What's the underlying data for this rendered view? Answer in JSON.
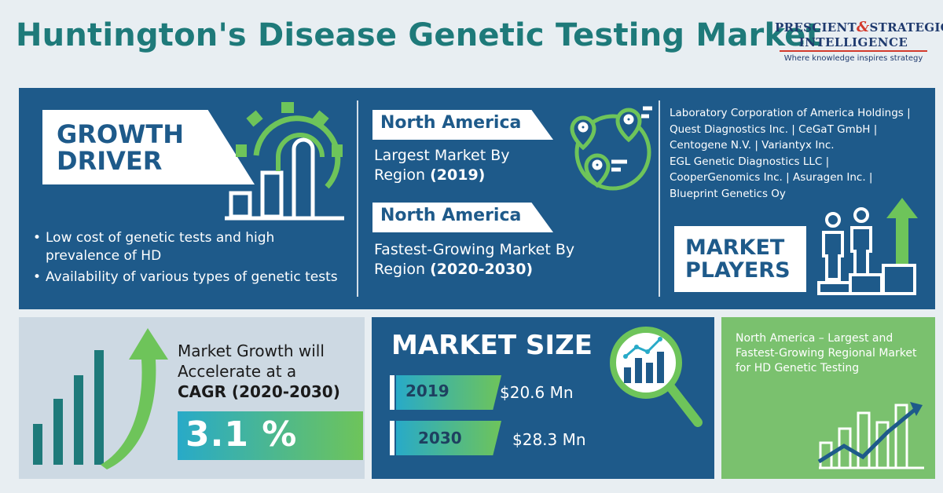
{
  "header": {
    "title": "Huntington's Disease Genetic Testing Market",
    "logo_line1_a": "PRESCIENT",
    "logo_amp": "&",
    "logo_line1_b": "STRATEGIC",
    "logo_line2": "INTELLIGENCE",
    "logo_tagline": "Where knowledge inspires strategy"
  },
  "growth_driver": {
    "label_line1": "GROWTH",
    "label_line2": "DRIVER",
    "bullets": [
      "Low cost of genetic tests and high prevalence of HD",
      "Availability of various types of genetic tests"
    ]
  },
  "regions": {
    "largest": {
      "name": "North America",
      "desc": "Largest Market By Region",
      "period": "(2019)"
    },
    "fastest": {
      "name": "North America",
      "desc": "Fastest-Growing Market By Region",
      "period": "(2020-2030)"
    }
  },
  "market_players": {
    "label_line1": "MARKET",
    "label_line2": "PLAYERS",
    "list_lines": [
      "Laboratory Corporation of America Holdings |",
      "Quest Diagnostics Inc. | CeGaT GmbH |",
      "Centogene N.V. | Variantyx Inc.",
      "EGL Genetic Diagnostics LLC |",
      "CooperGenomics Inc. | Asuragen Inc. |",
      "Blueprint Genetics Oy"
    ]
  },
  "growth": {
    "line1": "Market Growth will",
    "line2": "Accelerate at a",
    "line3": "CAGR (2020-2030)",
    "cagr": "3.1 %"
  },
  "market_size": {
    "title": "MARKET SIZE",
    "rows": [
      {
        "year": "2019",
        "value": "$20.6 Mn"
      },
      {
        "year": "2030",
        "value": "$28.3 Mn"
      }
    ]
  },
  "note": {
    "text": "North America – Largest and Fastest-Growing Regional Market for HD Genetic Testing"
  },
  "colors": {
    "brand_teal": "#1e7a7a",
    "panel_blue": "#1e5a8a",
    "accent_green": "#6ec45a",
    "accent_cyan": "#28aac8",
    "light_panel": "#cdd9e3"
  }
}
